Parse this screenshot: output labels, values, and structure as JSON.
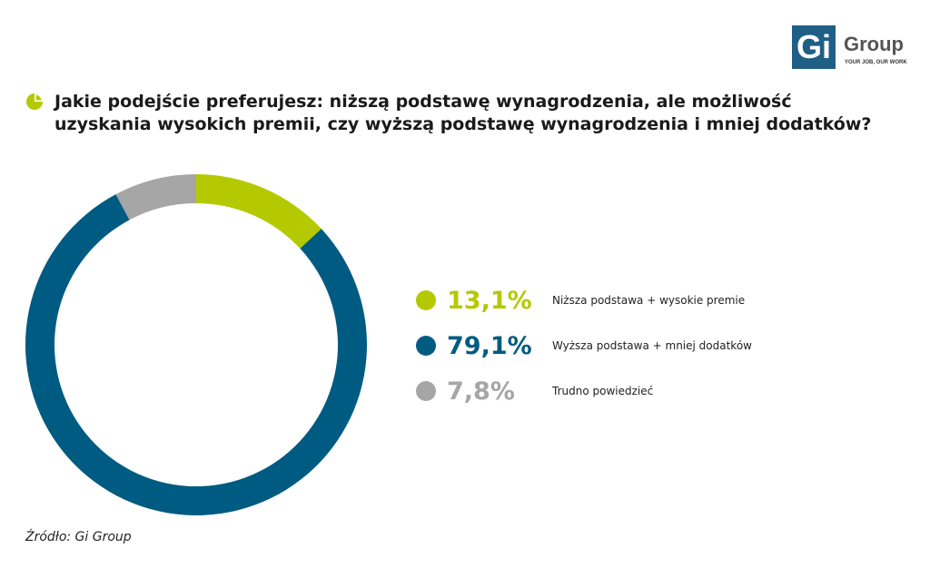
{
  "logo": {
    "text": "Gi Group",
    "mark": "Gi",
    "name": "Group",
    "tagline": "YOUR JOB, OUR WORK"
  },
  "title": "Jakie podejście preferujesz: niższą podstawę wynagrodzenia, ale możliwość uzyskania wysokich premii, czy wyższą podstawę wynagrodzenia i mniej dodatków?",
  "source": "Źródło: Gi Group",
  "chart_data": {
    "type": "pie",
    "donut": true,
    "categories": [
      "Niższa podstawa + wysokie premie",
      "Wyższa podstawa + mniej dodatków",
      "Trudno powiedzieć"
    ],
    "values": [
      13.1,
      79.1,
      7.8
    ],
    "labels": [
      "13,1%",
      "79,1%",
      "7,8%"
    ],
    "colors": [
      "#b5c900",
      "#005b82",
      "#a6a6a6"
    ],
    "legend": "right"
  }
}
